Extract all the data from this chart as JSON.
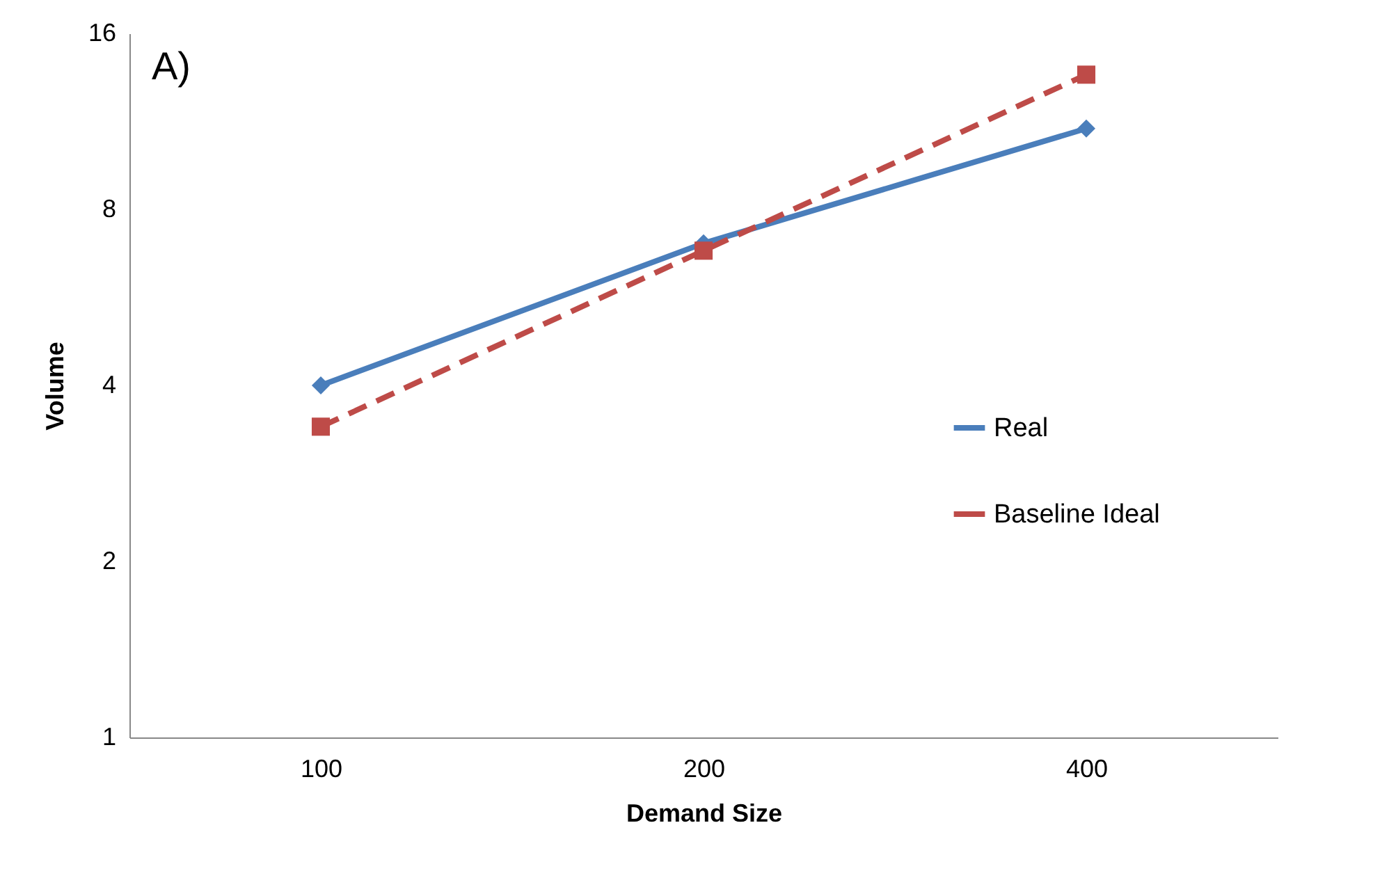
{
  "chart_data": {
    "type": "line",
    "xlabel": "Demand Size",
    "ylabel": "Volume",
    "annotations": [
      "A)"
    ],
    "categories": [
      "100",
      "200",
      "400"
    ],
    "series": [
      {
        "name": "Real",
        "color": "#4a7ebb",
        "values": [
          4.0,
          7.0,
          11.0
        ],
        "marker": "diamond",
        "line_style": "solid"
      },
      {
        "name": "Baseline Ideal",
        "color": "#be4b48",
        "values": [
          3.4,
          6.8,
          13.6
        ],
        "marker": "square",
        "line_style": "dashed"
      }
    ],
    "log": true,
    "ylim": [
      1,
      16
    ],
    "yticks": [
      1,
      2,
      4,
      8,
      16
    ],
    "grid": false,
    "legend": "right"
  }
}
